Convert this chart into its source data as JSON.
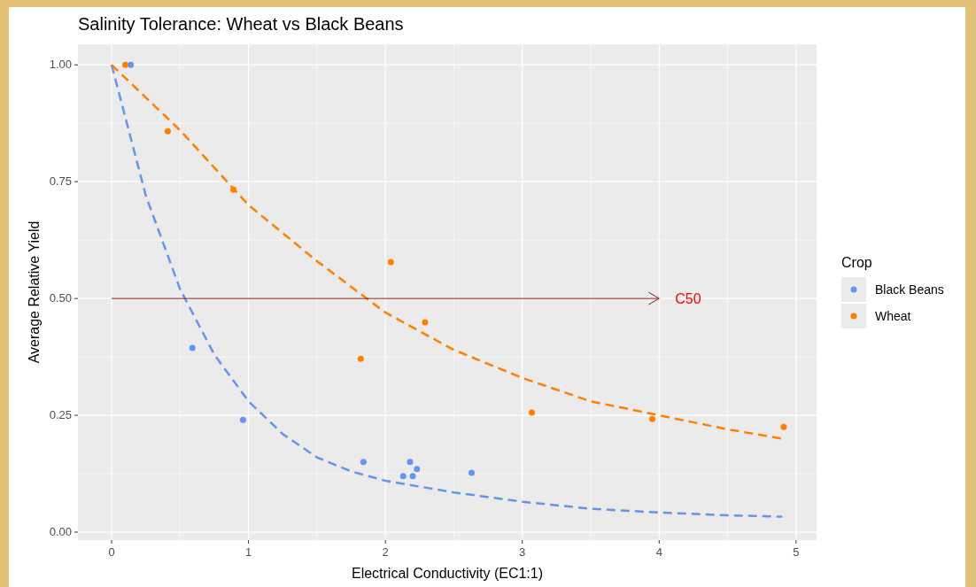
{
  "chart_data": {
    "type": "scatter",
    "title": "Salinity Tolerance: Wheat vs Black Beans",
    "xlabel": "Electrical Conductivity (EC1:1)",
    "ylabel": "Average Relative Yield",
    "legend_title": "Crop",
    "xlim": [
      -0.246,
      5.15
    ],
    "ylim": [
      -0.017,
      1.044
    ],
    "xticks": [
      0,
      1,
      2,
      3,
      4,
      5
    ],
    "yticks": [
      {
        "value": 0,
        "label": "0.00"
      },
      {
        "value": 0.25,
        "label": "0.25"
      },
      {
        "value": 0.5,
        "label": "0.50"
      },
      {
        "value": 0.75,
        "label": "0.75"
      },
      {
        "value": 1,
        "label": "1.00"
      }
    ],
    "grid": true,
    "legend": "right",
    "marker": "circle",
    "series": [
      {
        "type": "line",
        "color": "#6495ed",
        "line_style": "dashed",
        "marker": "none",
        "x": [
          0,
          0.25,
          0.5,
          0.75,
          1,
          1.25,
          1.5,
          1.75,
          2,
          2.5,
          3,
          3.5,
          4,
          4.5,
          4.9
        ],
        "values": [
          1.0,
          0.72,
          0.52,
          0.38,
          0.28,
          0.21,
          0.16,
          0.13,
          0.11,
          0.085,
          0.065,
          0.05,
          0.042,
          0.036,
          0.033
        ]
      },
      {
        "type": "line",
        "color": "#ff7f00",
        "line_style": "dashed",
        "marker": "none",
        "x": [
          0,
          0.5,
          1,
          1.5,
          2,
          2.5,
          3,
          3.5,
          4,
          4.5,
          4.9
        ],
        "values": [
          1.0,
          0.86,
          0.7,
          0.58,
          0.47,
          0.39,
          0.33,
          0.28,
          0.25,
          0.22,
          0.2
        ]
      },
      {
        "name": "Black Beans",
        "color": "#6495ed",
        "x": [
          0.14,
          0.59,
          0.96,
          1.84,
          2.13,
          2.18,
          2.2,
          2.23,
          2.63
        ],
        "values": [
          1.0,
          0.394,
          0.24,
          0.15,
          0.12,
          0.15,
          0.12,
          0.135,
          0.127
        ]
      },
      {
        "name": "Wheat",
        "color": "#ff7f00",
        "x": [
          0.1,
          0.41,
          0.89,
          2.04,
          1.82,
          2.29,
          3.07,
          3.95,
          4.91
        ],
        "values": [
          1.0,
          0.858,
          0.733,
          0.578,
          0.371,
          0.449,
          0.256,
          0.242,
          0.225
        ]
      }
    ],
    "ref_lines": [
      {
        "axis": "y",
        "value": 0.5,
        "label": "C50",
        "color": "#8b1a1a"
      }
    ]
  }
}
